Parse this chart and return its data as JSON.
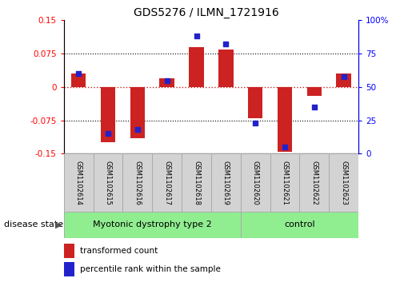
{
  "title": "GDS5276 / ILMN_1721916",
  "samples": [
    "GSM1102614",
    "GSM1102615",
    "GSM1102616",
    "GSM1102617",
    "GSM1102618",
    "GSM1102619",
    "GSM1102620",
    "GSM1102621",
    "GSM1102622",
    "GSM1102623"
  ],
  "red_bars": [
    0.03,
    -0.125,
    -0.115,
    0.02,
    0.09,
    0.085,
    -0.07,
    -0.145,
    -0.02,
    0.03
  ],
  "blue_dots": [
    60,
    15,
    18,
    55,
    88,
    82,
    23,
    5,
    35,
    58
  ],
  "ylim_left": [
    -0.15,
    0.15
  ],
  "ylim_right": [
    0,
    100
  ],
  "yticks_left": [
    -0.15,
    -0.075,
    0,
    0.075,
    0.15
  ],
  "yticks_right": [
    0,
    25,
    50,
    75,
    100
  ],
  "ytick_labels_left": [
    "-0.15",
    "-0.075",
    "0",
    "0.075",
    "0.15"
  ],
  "ytick_labels_right": [
    "0",
    "25",
    "50",
    "75",
    "100%"
  ],
  "groups": [
    {
      "label": "Myotonic dystrophy type 2",
      "start": 0,
      "end": 6,
      "color": "#90EE90"
    },
    {
      "label": "control",
      "start": 6,
      "end": 10,
      "color": "#90EE90"
    }
  ],
  "disease_state_label": "disease state",
  "legend_red_label": "transformed count",
  "legend_blue_label": "percentile rank within the sample",
  "bar_color": "#cc2222",
  "dot_color": "#2222cc",
  "bar_width": 0.5,
  "zero_line_color": "#cc2222",
  "cell_bg": "#d3d3d3",
  "cell_edge": "#aaaaaa"
}
